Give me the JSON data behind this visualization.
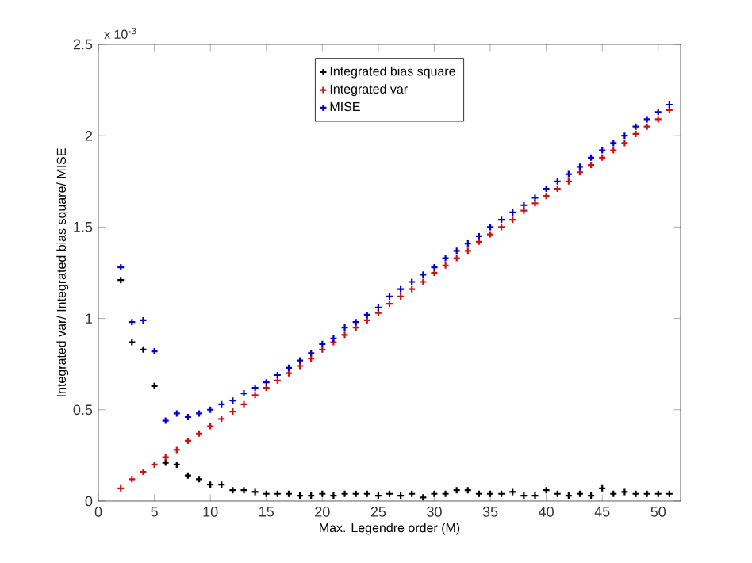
{
  "chart_data": {
    "type": "scatter",
    "xlabel": "Max. Legendre order (M)",
    "ylabel": "Integrated var/ Integrated bias square/ MISE",
    "annotations": [
      "x 10$^{-3}$"
    ],
    "x": [
      2,
      3,
      4,
      5,
      6,
      7,
      8,
      9,
      10,
      11,
      12,
      13,
      14,
      15,
      16,
      17,
      18,
      19,
      20,
      21,
      22,
      23,
      24,
      25,
      26,
      27,
      28,
      29,
      30,
      31,
      32,
      33,
      34,
      35,
      36,
      37,
      38,
      39,
      40,
      41,
      42,
      43,
      44,
      45,
      46,
      47,
      48,
      49,
      50,
      51
    ],
    "series": [
      {
        "name": "Integrated bias square",
        "color": "#000000",
        "values": [
          1.21,
          0.87,
          0.83,
          0.63,
          0.21,
          0.2,
          0.14,
          0.12,
          0.09,
          0.09,
          0.06,
          0.06,
          0.05,
          0.04,
          0.04,
          0.04,
          0.03,
          0.03,
          0.04,
          0.03,
          0.04,
          0.04,
          0.04,
          0.03,
          0.04,
          0.03,
          0.04,
          0.02,
          0.04,
          0.04,
          0.06,
          0.06,
          0.04,
          0.04,
          0.04,
          0.05,
          0.03,
          0.03,
          0.06,
          0.04,
          0.03,
          0.04,
          0.03,
          0.07,
          0.04,
          0.05,
          0.04,
          0.04,
          0.04,
          0.04
        ]
      },
      {
        "name": "Integrated var",
        "color": "#cc1111",
        "values": [
          0.07,
          0.12,
          0.16,
          0.2,
          0.24,
          0.28,
          0.33,
          0.37,
          0.41,
          0.45,
          0.49,
          0.53,
          0.58,
          0.62,
          0.66,
          0.7,
          0.74,
          0.78,
          0.83,
          0.87,
          0.91,
          0.95,
          0.99,
          1.03,
          1.08,
          1.12,
          1.16,
          1.2,
          1.25,
          1.29,
          1.33,
          1.37,
          1.42,
          1.46,
          1.5,
          1.54,
          1.59,
          1.63,
          1.67,
          1.71,
          1.75,
          1.8,
          1.84,
          1.88,
          1.92,
          1.96,
          2.01,
          2.05,
          2.09,
          2.14
        ]
      },
      {
        "name": "MISE",
        "color": "#0000cc",
        "values": [
          1.28,
          0.98,
          0.99,
          0.82,
          0.44,
          0.48,
          0.46,
          0.48,
          0.5,
          0.53,
          0.55,
          0.59,
          0.62,
          0.65,
          0.69,
          0.73,
          0.77,
          0.81,
          0.86,
          0.89,
          0.95,
          0.98,
          1.02,
          1.06,
          1.12,
          1.16,
          1.2,
          1.24,
          1.28,
          1.33,
          1.37,
          1.41,
          1.45,
          1.5,
          1.54,
          1.58,
          1.62,
          1.66,
          1.71,
          1.75,
          1.79,
          1.83,
          1.88,
          1.92,
          1.96,
          2.0,
          2.05,
          2.09,
          2.13,
          2.17
        ]
      }
    ],
    "xlim": [
      0,
      52
    ],
    "ylim": [
      0,
      2.5
    ],
    "xticks": [
      0,
      5,
      10,
      15,
      20,
      25,
      30,
      35,
      40,
      45,
      50
    ],
    "yticks": [
      0,
      0.5,
      1,
      1.5,
      2,
      2.5
    ],
    "marker": "cross",
    "legend": "top",
    "grid": false
  }
}
